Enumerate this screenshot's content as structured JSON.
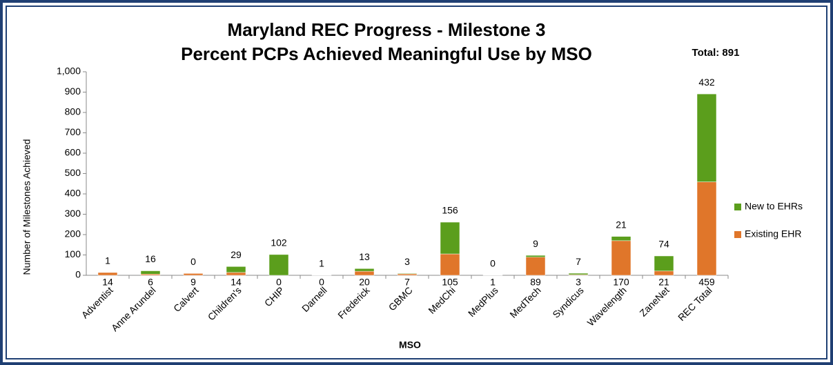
{
  "chart_data": {
    "type": "stacked_bar",
    "title": "Maryland REC Progress - Milestone 3",
    "subtitle": "Percent PCPs Achieved Meaningful Use by MSO",
    "annotation": "Total:  891",
    "x_label": "MSO",
    "y_label": "Number of Milestones Achieved",
    "categories": [
      "Adventist",
      "Anne Arundel",
      "Calvert",
      "Children's",
      "CHIP",
      "Darnell",
      "Frederick",
      "GBMC",
      "MedChi",
      "MedPlus",
      "MedTech",
      "Syndicus",
      "Wavelength",
      "ZaneNet",
      "REC Total"
    ],
    "series": [
      {
        "name": "Existing EHR",
        "color": "#e0762a",
        "values": [
          14,
          6,
          9,
          14,
          0,
          0,
          20,
          7,
          105,
          1,
          89,
          3,
          170,
          21,
          459
        ]
      },
      {
        "name": "New to EHRs",
        "color": "#5b9e1c",
        "values": [
          1,
          16,
          0,
          29,
          102,
          1,
          13,
          3,
          156,
          0,
          9,
          7,
          21,
          74,
          432
        ]
      }
    ],
    "ylim": [
      0,
      1000
    ],
    "yticks": [
      0,
      100,
      200,
      300,
      400,
      500,
      600,
      700,
      800,
      900,
      {
        "value": 1000,
        "label": "1,000"
      }
    ],
    "legend": "right"
  }
}
